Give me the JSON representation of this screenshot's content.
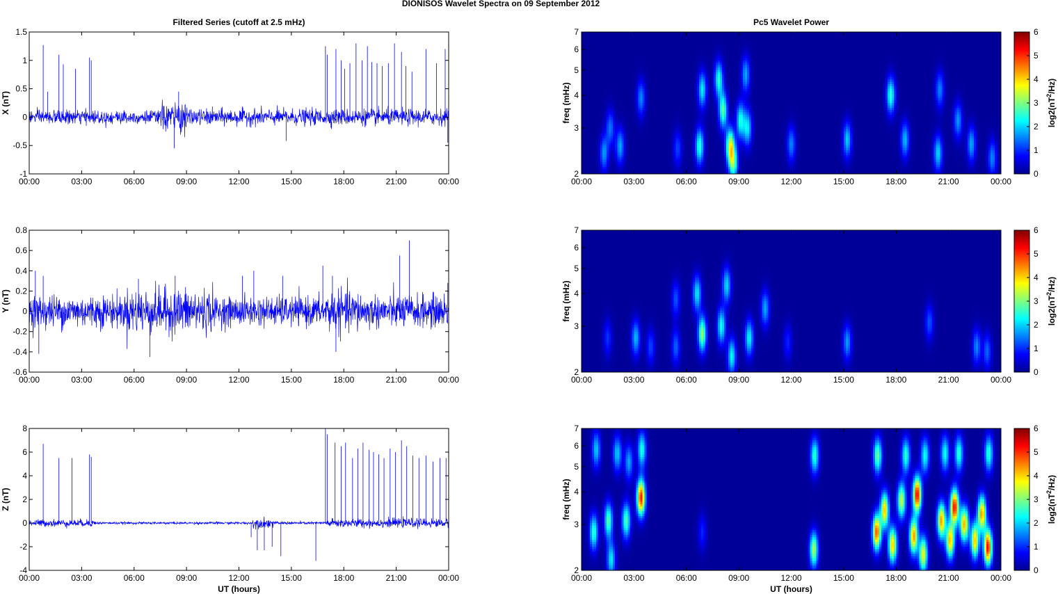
{
  "figure": {
    "suptitle": "DIONISOS Wavelet Spectra on 09 September 2012"
  },
  "chart_data": [
    {
      "type": "line",
      "panel": "X",
      "title": "Filtered Series (cutoff at 2.5 mHz)",
      "ylabel": "X (nT)",
      "xlabel": "",
      "xlim": [
        0,
        24
      ],
      "ylim": [
        -1,
        1.5
      ],
      "xticks": [
        "00:00",
        "03:00",
        "06:00",
        "09:00",
        "12:00",
        "15:00",
        "18:00",
        "21:00",
        "00:00"
      ],
      "yticks": [
        "-1",
        "-0.5",
        "0",
        "0.5",
        "1",
        "1.5"
      ],
      "series_color": "#0000ff",
      "noise_segments": [
        [
          0,
          7.5,
          0.06
        ],
        [
          7.5,
          9.0,
          0.13
        ],
        [
          9.0,
          17.0,
          0.07
        ],
        [
          17.0,
          24,
          0.07
        ]
      ],
      "spikes": [
        [
          0.8,
          1.27
        ],
        [
          1.05,
          0.45
        ],
        [
          1.7,
          1.1
        ],
        [
          1.95,
          0.93
        ],
        [
          2.65,
          0.85
        ],
        [
          3.45,
          1.05
        ],
        [
          3.55,
          1.0
        ],
        [
          8.3,
          -0.55
        ],
        [
          8.55,
          0.45
        ],
        [
          14.7,
          -0.42
        ],
        [
          16.95,
          1.25
        ],
        [
          17.05,
          1.1
        ],
        [
          17.55,
          1.2
        ],
        [
          17.85,
          1.0
        ],
        [
          18.05,
          0.85
        ],
        [
          18.35,
          0.95
        ],
        [
          18.7,
          1.3
        ],
        [
          19.05,
          1.0
        ],
        [
          19.35,
          1.25
        ],
        [
          19.6,
          0.97
        ],
        [
          19.9,
          0.95
        ],
        [
          20.2,
          0.9
        ],
        [
          20.55,
          0.95
        ],
        [
          20.9,
          1.3
        ],
        [
          21.3,
          1.15
        ],
        [
          21.55,
          0.9
        ],
        [
          21.9,
          0.8
        ],
        [
          22.7,
          1.2
        ],
        [
          23.3,
          0.95
        ],
        [
          23.8,
          1.2
        ],
        [
          23.95,
          -0.45
        ]
      ]
    },
    {
      "type": "line",
      "panel": "Y",
      "title": "",
      "ylabel": "Y (nT)",
      "xlabel": "",
      "xlim": [
        0,
        24
      ],
      "ylim": [
        -0.6,
        0.8
      ],
      "xticks": [
        "00:00",
        "03:00",
        "06:00",
        "09:00",
        "12:00",
        "15:00",
        "18:00",
        "21:00",
        "00:00"
      ],
      "yticks": [
        "-0.6",
        "-0.4",
        "-0.2",
        "0",
        "0.2",
        "0.4",
        "0.6",
        "0.8"
      ],
      "series_color": "#0000ff",
      "noise_segments": [
        [
          0,
          5.5,
          0.08
        ],
        [
          5.5,
          10.5,
          0.11
        ],
        [
          10.5,
          17.0,
          0.07
        ],
        [
          17.0,
          19.0,
          0.1
        ],
        [
          19.0,
          24,
          0.08
        ]
      ],
      "spikes": [
        [
          0.35,
          0.4
        ],
        [
          0.55,
          -0.42
        ],
        [
          0.8,
          0.35
        ],
        [
          6.25,
          0.32
        ],
        [
          6.9,
          -0.45
        ],
        [
          8.35,
          0.35
        ],
        [
          12.2,
          0.35
        ],
        [
          12.85,
          0.4
        ],
        [
          14.5,
          0.35
        ],
        [
          16.8,
          0.45
        ],
        [
          17.35,
          0.35
        ],
        [
          17.55,
          -0.4
        ],
        [
          21.2,
          0.55
        ],
        [
          21.75,
          0.7
        ],
        [
          23.95,
          0.28
        ]
      ]
    },
    {
      "type": "line",
      "panel": "Z",
      "title": "",
      "ylabel": "Z (nT)",
      "xlabel": "UT (hours)",
      "xlim": [
        0,
        24
      ],
      "ylim": [
        -4,
        8
      ],
      "xticks": [
        "00:00",
        "03:00",
        "06:00",
        "09:00",
        "12:00",
        "15:00",
        "18:00",
        "21:00",
        "00:00"
      ],
      "yticks": [
        "-4",
        "-2",
        "0",
        "2",
        "4",
        "6",
        "8"
      ],
      "series_color": "#0000ff",
      "noise_segments": [
        [
          0,
          3.8,
          0.15
        ],
        [
          3.8,
          12.8,
          0.05
        ],
        [
          12.8,
          14.0,
          0.2
        ],
        [
          14.0,
          17.0,
          0.06
        ],
        [
          17.0,
          24,
          0.18
        ]
      ],
      "spikes": [
        [
          0.8,
          6.7
        ],
        [
          1.7,
          5.5
        ],
        [
          2.45,
          5.5
        ],
        [
          3.45,
          5.8
        ],
        [
          3.55,
          5.6
        ],
        [
          12.7,
          -1.2
        ],
        [
          13.05,
          -2.3
        ],
        [
          13.45,
          -2.3
        ],
        [
          13.9,
          -2.0
        ],
        [
          14.4,
          -2.8
        ],
        [
          16.4,
          -3.2
        ],
        [
          16.95,
          8.0
        ],
        [
          17.05,
          7.5
        ],
        [
          17.5,
          6.8
        ],
        [
          17.85,
          6.5
        ],
        [
          18.1,
          6.8
        ],
        [
          18.5,
          5.5
        ],
        [
          18.8,
          6.3
        ],
        [
          19.1,
          6.8
        ],
        [
          19.45,
          6.2
        ],
        [
          19.7,
          6.0
        ],
        [
          20.0,
          5.8
        ],
        [
          20.3,
          5.5
        ],
        [
          20.65,
          6.3
        ],
        [
          20.95,
          6.0
        ],
        [
          21.3,
          7.0
        ],
        [
          21.6,
          6.5
        ],
        [
          21.95,
          5.7
        ],
        [
          22.3,
          5.5
        ],
        [
          22.7,
          5.7
        ],
        [
          23.1,
          5.2
        ],
        [
          23.5,
          5.5
        ],
        [
          23.85,
          5.5
        ]
      ]
    },
    {
      "type": "heatmap",
      "panel": "X",
      "title": "Pc5 Wavelet Power",
      "ylabel": "freq (mHz)",
      "xlabel": "",
      "xlim": [
        0,
        24
      ],
      "ylim": [
        2,
        7
      ],
      "yscale": "log",
      "xticks": [
        "00:00",
        "03:00",
        "06:00",
        "09:00",
        "12:00",
        "15:00",
        "18:00",
        "21:00",
        "00:00"
      ],
      "yticks": [
        "2",
        "3",
        "4",
        "5",
        "6",
        "7"
      ],
      "colorbar": {
        "label": "log2(nT^2/Hz)",
        "range": [
          0,
          6
        ],
        "ticks": [
          "0",
          "1",
          "2",
          "3",
          "4",
          "5",
          "6"
        ],
        "colormap": "jet"
      },
      "blobs": [
        [
          1.3,
          2.4,
          1.5
        ],
        [
          1.65,
          3.0,
          1.3
        ],
        [
          2.2,
          2.55,
          1.6
        ],
        [
          3.4,
          3.9,
          1.4
        ],
        [
          5.5,
          2.5,
          1.0
        ],
        [
          6.75,
          2.55,
          2.4
        ],
        [
          6.9,
          4.2,
          2.0
        ],
        [
          7.85,
          4.6,
          2.3
        ],
        [
          8.1,
          3.5,
          2.6
        ],
        [
          8.5,
          2.55,
          3.3
        ],
        [
          8.7,
          2.2,
          2.6
        ],
        [
          9.1,
          3.2,
          2.2
        ],
        [
          9.4,
          4.8,
          1.6
        ],
        [
          9.5,
          3.0,
          2.0
        ],
        [
          12.0,
          2.6,
          1.4
        ],
        [
          15.2,
          2.7,
          1.8
        ],
        [
          17.7,
          4.0,
          2.4
        ],
        [
          18.5,
          2.7,
          1.7
        ],
        [
          20.4,
          2.4,
          1.9
        ],
        [
          20.5,
          4.2,
          1.4
        ],
        [
          21.55,
          3.2,
          1.5
        ],
        [
          22.3,
          2.6,
          1.6
        ],
        [
          23.5,
          2.3,
          1.4
        ]
      ]
    },
    {
      "type": "heatmap",
      "panel": "Y",
      "title": "",
      "ylabel": "freq (mHz)",
      "xlabel": "",
      "xlim": [
        0,
        24
      ],
      "ylim": [
        2,
        7
      ],
      "yscale": "log",
      "xticks": [
        "00:00",
        "03:00",
        "06:00",
        "09:00",
        "12:00",
        "15:00",
        "18:00",
        "21:00",
        "00:00"
      ],
      "yticks": [
        "2",
        "3",
        "4",
        "5",
        "6",
        "7"
      ],
      "colorbar": {
        "label": "log2(nT^2/Hz)",
        "range": [
          0,
          6
        ],
        "ticks": [
          "0",
          "1",
          "2",
          "3",
          "4",
          "5",
          "6"
        ],
        "colormap": "jet"
      },
      "blobs": [
        [
          1.5,
          2.7,
          0.9
        ],
        [
          3.1,
          2.7,
          1.7
        ],
        [
          3.95,
          2.5,
          1.0
        ],
        [
          5.4,
          3.8,
          1.1
        ],
        [
          5.4,
          2.5,
          1.2
        ],
        [
          6.6,
          4.0,
          2.0
        ],
        [
          6.9,
          2.8,
          2.9
        ],
        [
          8.0,
          3.0,
          2.2
        ],
        [
          8.3,
          4.3,
          1.9
        ],
        [
          8.6,
          2.3,
          2.1
        ],
        [
          9.6,
          2.7,
          2.1
        ],
        [
          10.5,
          3.5,
          1.6
        ],
        [
          11.8,
          2.6,
          0.8
        ],
        [
          15.2,
          2.6,
          1.5
        ],
        [
          19.9,
          3.1,
          1.1
        ],
        [
          22.6,
          2.5,
          1.4
        ],
        [
          23.2,
          2.4,
          1.2
        ]
      ]
    },
    {
      "type": "heatmap",
      "panel": "Z",
      "title": "",
      "ylabel": "freq (mHz)",
      "xlabel": "UT (hours)",
      "xlim": [
        0,
        24
      ],
      "ylim": [
        2,
        7
      ],
      "yscale": "log",
      "xticks": [
        "00:00",
        "03:00",
        "06:00",
        "09:00",
        "12:00",
        "15:00",
        "18:00",
        "21:00",
        "00:00"
      ],
      "yticks": [
        "2",
        "3",
        "4",
        "5",
        "6",
        "7"
      ],
      "colorbar": {
        "label": "log2(nT^2/Hz)",
        "range": [
          0,
          6
        ],
        "ticks": [
          "0",
          "1",
          "2",
          "3",
          "4",
          "5",
          "6"
        ],
        "colormap": "jet"
      },
      "blobs": [
        [
          0.7,
          2.8,
          2.4
        ],
        [
          0.85,
          5.8,
          1.8
        ],
        [
          1.55,
          3.1,
          2.6
        ],
        [
          1.7,
          2.2,
          2.0
        ],
        [
          2.05,
          5.6,
          1.8
        ],
        [
          2.55,
          3.1,
          2.6
        ],
        [
          2.7,
          5.2,
          1.6
        ],
        [
          3.4,
          3.8,
          5.0
        ],
        [
          3.45,
          5.8,
          2.3
        ],
        [
          6.9,
          2.8,
          0.8
        ],
        [
          13.3,
          2.4,
          3.1
        ],
        [
          13.35,
          5.5,
          2.4
        ],
        [
          16.9,
          2.8,
          4.6
        ],
        [
          16.95,
          5.5,
          2.8
        ],
        [
          17.35,
          3.4,
          3.8
        ],
        [
          17.8,
          2.5,
          3.8
        ],
        [
          18.3,
          3.7,
          3.3
        ],
        [
          18.55,
          5.5,
          2.4
        ],
        [
          19.0,
          2.7,
          4.2
        ],
        [
          19.2,
          3.9,
          5.2
        ],
        [
          19.55,
          2.3,
          3.6
        ],
        [
          19.65,
          5.5,
          2.2
        ],
        [
          20.6,
          3.1,
          4.2
        ],
        [
          20.8,
          5.6,
          2.2
        ],
        [
          21.1,
          2.6,
          4.0
        ],
        [
          21.35,
          3.5,
          5.1
        ],
        [
          21.9,
          3.0,
          4.0
        ],
        [
          21.6,
          5.6,
          2.4
        ],
        [
          22.5,
          2.6,
          3.8
        ],
        [
          22.9,
          3.3,
          4.2
        ],
        [
          23.25,
          2.45,
          5.1
        ],
        [
          23.3,
          5.6,
          2.4
        ]
      ]
    }
  ]
}
